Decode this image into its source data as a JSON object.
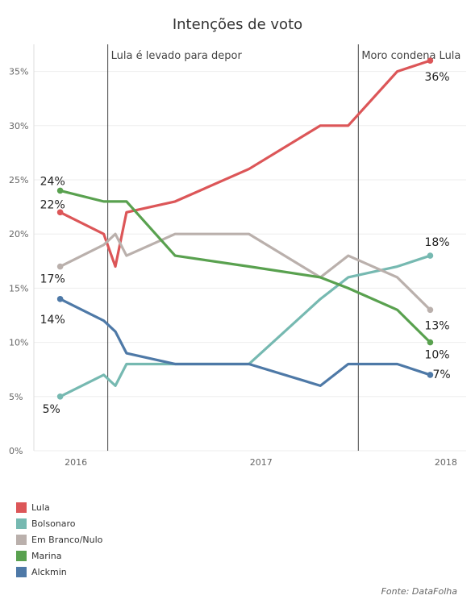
{
  "title": "Intenções de voto",
  "source": "Fonte: DataFolha",
  "chart_data": {
    "type": "line",
    "title": "Intenções de voto",
    "xlabel": "",
    "ylabel": "",
    "xlim": [
      "2015-10-10",
      "2018-02-10"
    ],
    "ylim": [
      0,
      37.5
    ],
    "y_ticks": [
      0,
      5,
      10,
      15,
      20,
      25,
      30,
      35
    ],
    "y_tick_labels": [
      "0%",
      "5%",
      "10%",
      "15%",
      "20%",
      "25%",
      "30%",
      "35%"
    ],
    "x_ticks": [
      "2016-01-01",
      "2017-01-01",
      "2018-01-01"
    ],
    "x_tick_labels": [
      "2016",
      "2017",
      "2018"
    ],
    "grid": true,
    "legend_position": "bottom-left",
    "annotations": [
      {
        "x": "2016-03-04",
        "label": "Lula é levado para depor"
      },
      {
        "x": "2017-07-12",
        "label": "Moro condena Lula"
      }
    ],
    "series": [
      {
        "name": "Lula",
        "color": "#dc5658",
        "x": [
          "2015-12-01",
          "2016-02-25",
          "2016-03-19",
          "2016-04-10",
          "2016-07-15",
          "2016-12-08",
          "2017-04-28",
          "2017-06-22",
          "2017-09-27",
          "2017-12-01"
        ],
        "values": [
          22,
          20,
          17,
          22,
          23,
          26,
          30,
          30,
          35,
          36
        ],
        "labels": [
          {
            "i": 0,
            "text": "22%"
          },
          {
            "i": 9,
            "text": "36%"
          }
        ]
      },
      {
        "name": "Bolsonaro",
        "color": "#76b9b1",
        "x": [
          "2015-12-01",
          "2016-02-25",
          "2016-03-19",
          "2016-04-10",
          "2016-07-15",
          "2016-12-08",
          "2017-04-28",
          "2017-06-22",
          "2017-09-27",
          "2017-12-01"
        ],
        "values": [
          5,
          7,
          6,
          8,
          8,
          8,
          14,
          16,
          17,
          18
        ],
        "labels": [
          {
            "i": 0,
            "text": "5%"
          },
          {
            "i": 9,
            "text": "18%"
          }
        ]
      },
      {
        "name": "Em Branco/Nulo",
        "color": "#bab0ac",
        "x": [
          "2015-12-01",
          "2016-02-25",
          "2016-03-19",
          "2016-04-10",
          "2016-07-15",
          "2016-12-08",
          "2017-04-28",
          "2017-06-22",
          "2017-09-27",
          "2017-12-01"
        ],
        "values": [
          17,
          19,
          20,
          18,
          20,
          20,
          16,
          18,
          16,
          13
        ],
        "labels": [
          {
            "i": 0,
            "text": "17%"
          },
          {
            "i": 9,
            "text": "13%"
          }
        ]
      },
      {
        "name": "Marina",
        "color": "#59a14f",
        "x": [
          "2015-12-01",
          "2016-02-25",
          "2016-03-19",
          "2016-04-10",
          "2016-07-15",
          "2016-12-08",
          "2017-04-28",
          "2017-06-22",
          "2017-09-27",
          "2017-12-01"
        ],
        "values": [
          24,
          23,
          23,
          23,
          18,
          17,
          16,
          15,
          13,
          10
        ],
        "labels": [
          {
            "i": 0,
            "text": "24%"
          },
          {
            "i": 9,
            "text": "10%"
          }
        ]
      },
      {
        "name": "Alckmin",
        "color": "#4e79a7",
        "x": [
          "2015-12-01",
          "2016-02-25",
          "2016-03-19",
          "2016-04-10",
          "2016-07-15",
          "2016-12-08",
          "2017-04-28",
          "2017-06-22",
          "2017-09-27",
          "2017-12-01"
        ],
        "values": [
          14,
          12,
          11,
          9,
          8,
          8,
          6,
          8,
          8,
          7
        ],
        "labels": [
          {
            "i": 0,
            "text": "14%"
          },
          {
            "i": 9,
            "text": "7%"
          }
        ]
      }
    ]
  }
}
